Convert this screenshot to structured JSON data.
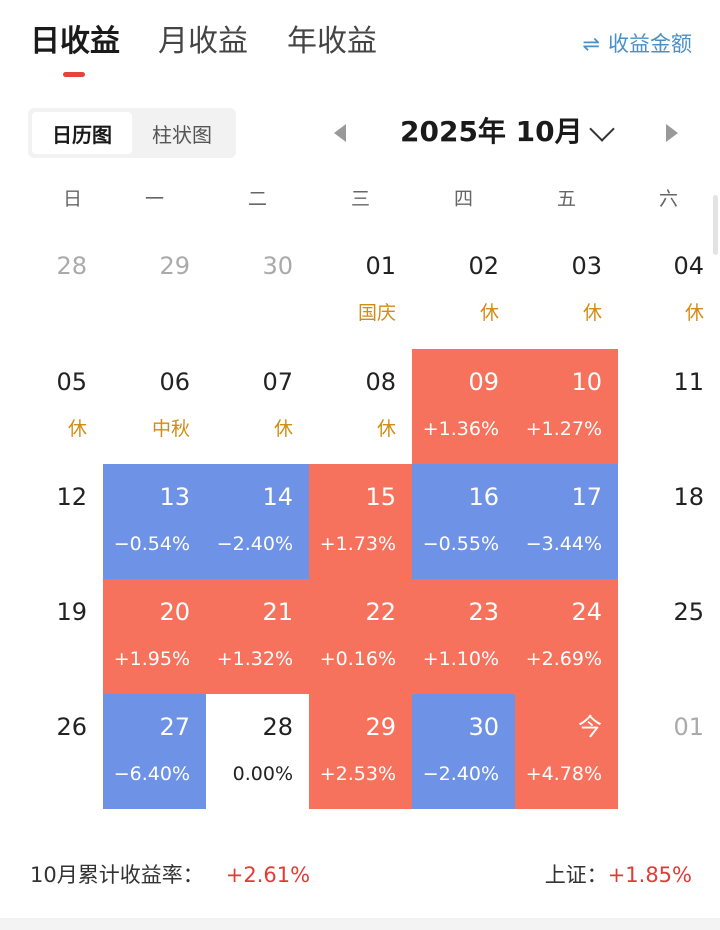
{
  "tabs": [
    {
      "label": "日收益",
      "active": true
    },
    {
      "label": "月收益",
      "active": false
    },
    {
      "label": "年收益",
      "active": false
    }
  ],
  "switch_amount": {
    "icon": "swap-arrows-icon",
    "label": "收益金额"
  },
  "view_toggle": [
    {
      "label": "日历图",
      "active": true
    },
    {
      "label": "柱状图",
      "active": false
    }
  ],
  "month_title": "2025年 10月",
  "weekdays": [
    "日",
    "一",
    "二",
    "三",
    "四",
    "五",
    "六"
  ],
  "weeks": [
    [
      {
        "day": "28",
        "sub": "",
        "type": "muted"
      },
      {
        "day": "29",
        "sub": "",
        "type": "muted"
      },
      {
        "day": "30",
        "sub": "",
        "type": "muted"
      },
      {
        "day": "01",
        "sub": "国庆",
        "type": "holiday"
      },
      {
        "day": "02",
        "sub": "休",
        "type": "holiday"
      },
      {
        "day": "03",
        "sub": "休",
        "type": "holiday"
      },
      {
        "day": "04",
        "sub": "休",
        "type": "holiday"
      }
    ],
    [
      {
        "day": "05",
        "sub": "休",
        "type": "holiday"
      },
      {
        "day": "06",
        "sub": "中秋",
        "type": "holiday"
      },
      {
        "day": "07",
        "sub": "休",
        "type": "holiday"
      },
      {
        "day": "08",
        "sub": "休",
        "type": "holiday"
      },
      {
        "day": "09",
        "sub": "+1.36%",
        "type": "up"
      },
      {
        "day": "10",
        "sub": "+1.27%",
        "type": "up"
      },
      {
        "day": "11",
        "sub": "",
        "type": "normal"
      }
    ],
    [
      {
        "day": "12",
        "sub": "",
        "type": "normal"
      },
      {
        "day": "13",
        "sub": "−0.54%",
        "type": "down"
      },
      {
        "day": "14",
        "sub": "−2.40%",
        "type": "down"
      },
      {
        "day": "15",
        "sub": "+1.73%",
        "type": "up"
      },
      {
        "day": "16",
        "sub": "−0.55%",
        "type": "down"
      },
      {
        "day": "17",
        "sub": "−3.44%",
        "type": "down"
      },
      {
        "day": "18",
        "sub": "",
        "type": "normal"
      }
    ],
    [
      {
        "day": "19",
        "sub": "",
        "type": "normal"
      },
      {
        "day": "20",
        "sub": "+1.95%",
        "type": "up"
      },
      {
        "day": "21",
        "sub": "+1.32%",
        "type": "up"
      },
      {
        "day": "22",
        "sub": "+0.16%",
        "type": "up"
      },
      {
        "day": "23",
        "sub": "+1.10%",
        "type": "up"
      },
      {
        "day": "24",
        "sub": "+2.69%",
        "type": "up"
      },
      {
        "day": "25",
        "sub": "",
        "type": "normal"
      }
    ],
    [
      {
        "day": "26",
        "sub": "",
        "type": "normal"
      },
      {
        "day": "27",
        "sub": "−6.40%",
        "type": "down"
      },
      {
        "day": "28",
        "sub": "0.00%",
        "type": "flat"
      },
      {
        "day": "29",
        "sub": "+2.53%",
        "type": "up"
      },
      {
        "day": "30",
        "sub": "−2.40%",
        "type": "down"
      },
      {
        "day": "今",
        "sub": "+4.78%",
        "type": "up"
      },
      {
        "day": "01",
        "sub": "",
        "type": "muted"
      }
    ]
  ],
  "summary": {
    "cumulative_label": "10月累计收益率：",
    "cumulative_value": "+2.61%",
    "index_label": "上证：",
    "index_value": "+1.85%"
  },
  "colors": {
    "up": "#f7725d",
    "down": "#6e92e6",
    "holiday_text": "#d28c14",
    "accent_red": "#e23b35",
    "link_blue": "#4a90c8"
  }
}
